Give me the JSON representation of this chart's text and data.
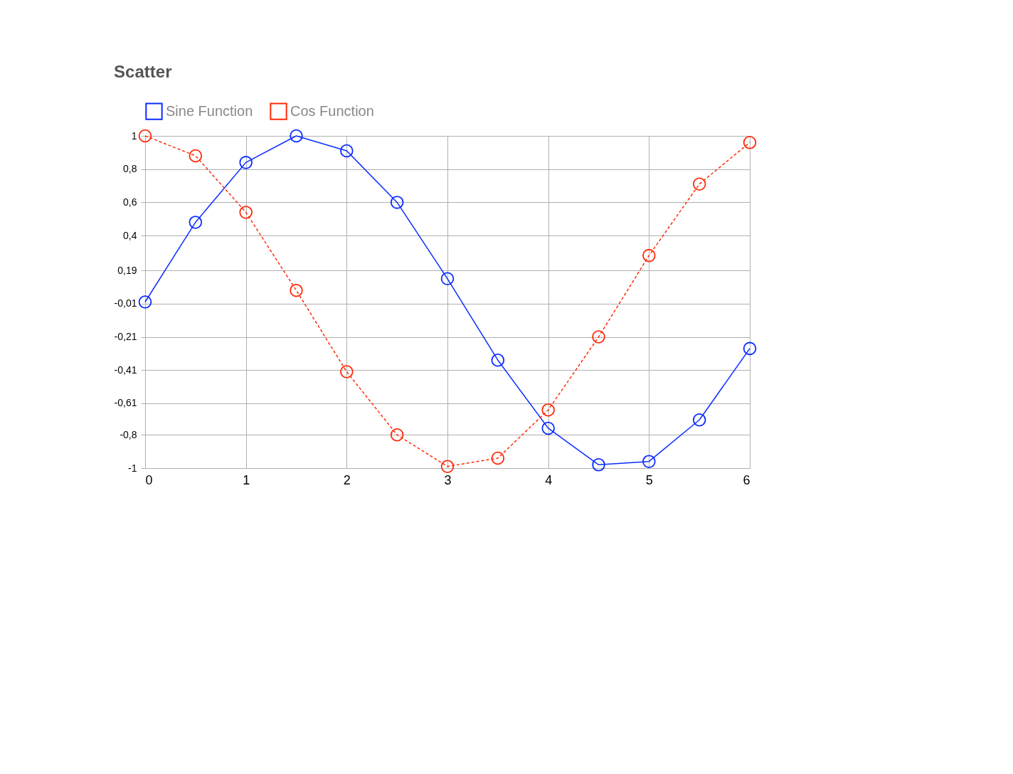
{
  "chart_data": {
    "type": "line",
    "title": "Scatter",
    "x": [
      0,
      0.5,
      1,
      1.5,
      2,
      2.5,
      3,
      3.5,
      4,
      4.5,
      5,
      5.5,
      6
    ],
    "series": [
      {
        "name": "Sine Function",
        "color": "#0a2cff",
        "line_style": "solid",
        "values": [
          0,
          0.48,
          0.84,
          1.0,
          0.91,
          0.6,
          0.14,
          -0.35,
          -0.76,
          -0.98,
          -0.96,
          -0.71,
          -0.28
        ]
      },
      {
        "name": "Cos Function",
        "color": "#ff2a0a",
        "line_style": "dashed",
        "values": [
          1.0,
          0.88,
          0.54,
          0.07,
          -0.42,
          -0.8,
          -0.99,
          -0.94,
          -0.65,
          -0.21,
          0.28,
          0.71,
          0.96
        ]
      }
    ],
    "marker": "circle",
    "grid": true,
    "legend": "top",
    "xlim": [
      0,
      6
    ],
    "xticks": [
      0,
      1,
      2,
      3,
      4,
      5,
      6
    ],
    "ylim": [
      -1,
      1
    ],
    "yticks": [
      {
        "value": -1,
        "label": "-1"
      },
      {
        "value": -0.8,
        "label": "-0,8"
      },
      {
        "value": -0.61,
        "label": "-0,61"
      },
      {
        "value": -0.41,
        "label": "-0,41"
      },
      {
        "value": -0.21,
        "label": "-0,21"
      },
      {
        "value": -0.01,
        "label": "-0,01"
      },
      {
        "value": 0.19,
        "label": "0,19"
      },
      {
        "value": 0.4,
        "label": "0,4"
      },
      {
        "value": 0.6,
        "label": "0,6"
      },
      {
        "value": 0.8,
        "label": "0,8"
      },
      {
        "value": 1,
        "label": "1"
      }
    ]
  }
}
